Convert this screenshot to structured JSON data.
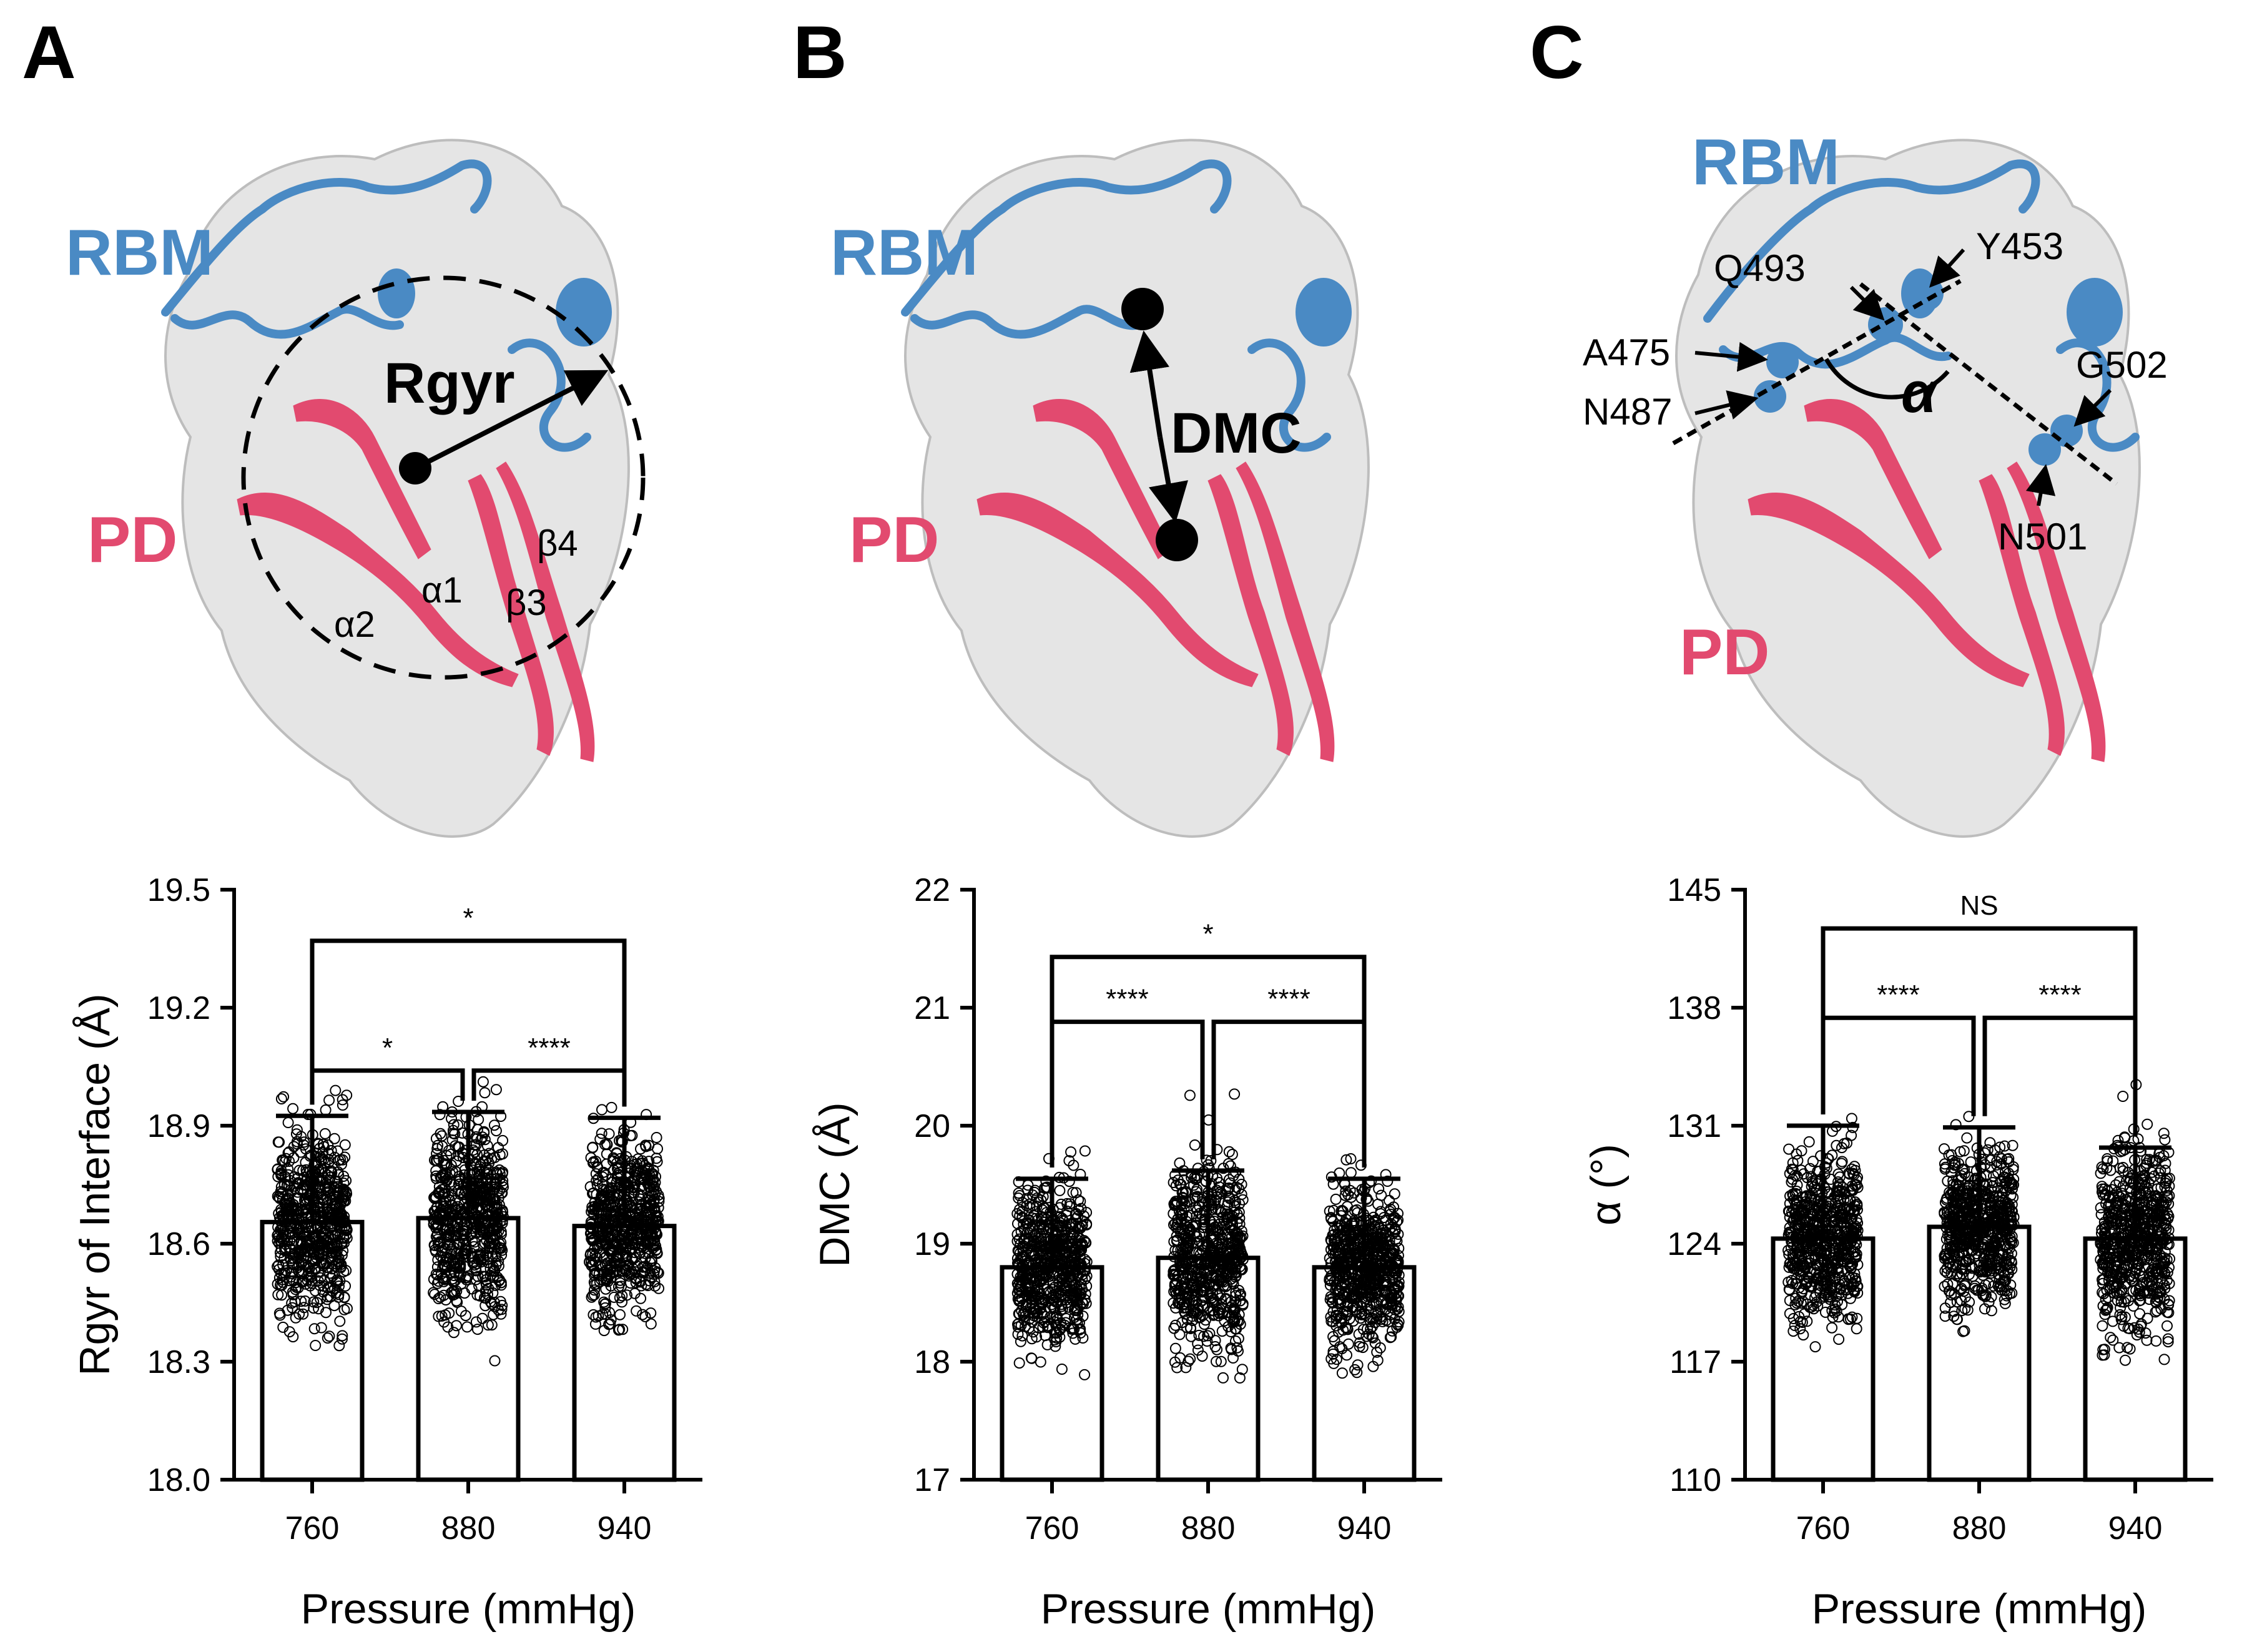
{
  "figure": {
    "panels": [
      {
        "letter": "A",
        "structure": {
          "rbm_label": "RBM",
          "pd_label": "PD",
          "measure_label": "Rgyr",
          "secondary_labels": [
            "α2",
            "α1",
            "β3",
            "β4"
          ]
        }
      },
      {
        "letter": "B",
        "structure": {
          "rbm_label": "RBM",
          "pd_label": "PD",
          "measure_label": "DMC"
        }
      },
      {
        "letter": "C",
        "structure": {
          "rbm_label": "RBM",
          "pd_label": "PD",
          "angle_label": "α",
          "residues": [
            "Q493",
            "Y453",
            "A475",
            "N487",
            "G502",
            "N501"
          ]
        }
      }
    ],
    "colors": {
      "rbm": "#4a8ac4",
      "pd": "#e24a6f",
      "surface": "#dcdcdc"
    }
  },
  "chart_data": [
    {
      "type": "bar",
      "categories": [
        "760",
        "880",
        "940"
      ],
      "values": [
        18.655,
        18.665,
        18.645
      ],
      "error_upper": [
        18.925,
        18.935,
        18.92
      ],
      "points_range": [
        [
          18.29,
          18.99
        ],
        [
          18.28,
          19.03
        ],
        [
          18.35,
          18.97
        ]
      ],
      "title": "",
      "xlabel": "Pressure (mmHg)",
      "ylabel": "Rgyr of Interface (Å)",
      "ylim": [
        18.0,
        19.5
      ],
      "yticks": [
        "18.0",
        "18.3",
        "18.6",
        "18.9",
        "19.2",
        "19.5"
      ],
      "significance": [
        {
          "from": "760",
          "to": "880",
          "label": "*",
          "level": 19.04
        },
        {
          "from": "880",
          "to": "940",
          "label": "****",
          "level": 19.04
        },
        {
          "from": "760",
          "to": "940",
          "label": "*",
          "level": 19.37
        }
      ]
    },
    {
      "type": "bar",
      "categories": [
        "760",
        "880",
        "940"
      ],
      "values": [
        18.8,
        18.88,
        18.8
      ],
      "error_upper": [
        19.55,
        19.62,
        19.55
      ],
      "points_range": [
        [
          17.85,
          19.85
        ],
        [
          17.85,
          20.28
        ],
        [
          17.9,
          19.82
        ]
      ],
      "title": "",
      "xlabel": "Pressure (mmHg)",
      "ylabel": "DMC (Å)",
      "ylim": [
        17,
        22
      ],
      "yticks": [
        "17",
        "18",
        "19",
        "20",
        "21",
        "22"
      ],
      "significance": [
        {
          "from": "760",
          "to": "880",
          "label": "****",
          "level": 20.88
        },
        {
          "from": "880",
          "to": "940",
          "label": "****",
          "level": 20.88
        },
        {
          "from": "760",
          "to": "940",
          "label": "*",
          "level": 21.43
        }
      ]
    },
    {
      "type": "bar",
      "categories": [
        "760",
        "880",
        "940"
      ],
      "values": [
        124.3,
        125.0,
        124.3
      ],
      "error_upper": [
        131.0,
        130.9,
        129.7
      ],
      "points_range": [
        [
          117.0,
          131.6
        ],
        [
          118.0,
          131.8
        ],
        [
          117.0,
          133.8
        ]
      ],
      "title": "",
      "xlabel": "Pressure (mmHg)",
      "ylabel": "α (°)",
      "ylim": [
        110,
        145
      ],
      "yticks": [
        "110",
        "117",
        "124",
        "131",
        "138",
        "145"
      ],
      "significance": [
        {
          "from": "760",
          "to": "880",
          "label": "****",
          "level": 137.4
        },
        {
          "from": "880",
          "to": "940",
          "label": "****",
          "level": 137.4
        },
        {
          "from": "760",
          "to": "940",
          "label": "NS",
          "level": 142.7
        }
      ]
    }
  ]
}
